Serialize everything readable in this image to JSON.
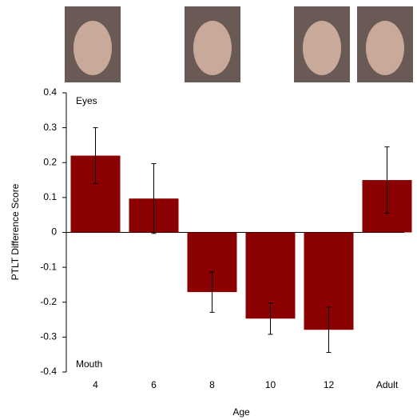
{
  "chart_data": {
    "type": "bar",
    "x_label": "Age",
    "y_label": "PTLT Difference Score",
    "annotations": [
      "Eyes",
      "Mouth"
    ],
    "categories": [
      "4",
      "6",
      "8",
      "10",
      "12",
      "Adult"
    ],
    "series": [
      {
        "color": "#8b0000",
        "values": [
          0.22,
          0.097,
          -0.171,
          -0.247,
          -0.279,
          0.15
        ],
        "errors": [
          0.08,
          0.1,
          0.058,
          0.045,
          0.065,
          0.095
        ]
      }
    ],
    "ylim": [
      -0.4,
      0.4
    ],
    "yticks": [
      -0.4,
      -0.3,
      -0.2,
      -0.1,
      0,
      0.1,
      0.2,
      0.3,
      0.4
    ]
  }
}
